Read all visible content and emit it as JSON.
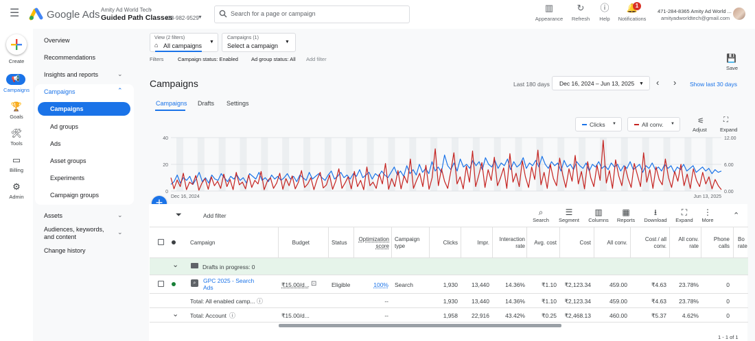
{
  "app": {
    "product_name": "Google Ads",
    "account_org": "Amity Ad World Tech",
    "account_name": "Guided Path Classes",
    "account_id": "428-982-9529",
    "search_placeholder": "Search for a page or campaign"
  },
  "topbar_buttons": [
    {
      "label": "Appearance",
      "icon": "appearance-icon"
    },
    {
      "label": "Refresh",
      "icon": "refresh-icon"
    },
    {
      "label": "Help",
      "icon": "help-icon"
    },
    {
      "label": "Notifications",
      "icon": "bell-icon",
      "badge": "1"
    }
  ],
  "user": {
    "line1": "471-284-8365 Amity Ad World ...",
    "email": "amityadworldtech@gmail.com"
  },
  "rail": [
    {
      "label": "Create"
    },
    {
      "label": "Campaigns"
    },
    {
      "label": "Goals"
    },
    {
      "label": "Tools"
    },
    {
      "label": "Billing"
    },
    {
      "label": "Admin"
    }
  ],
  "nav": {
    "overview": "Overview",
    "recommendations": "Recommendations",
    "insights": "Insights and reports",
    "campaigns": "Campaigns",
    "sub": [
      "Campaigns",
      "Ad groups",
      "Ads",
      "Asset groups",
      "Experiments",
      "Campaign groups"
    ],
    "assets": "Assets",
    "audiences": "Audiences, keywords, and content",
    "change_history": "Change history"
  },
  "filters": {
    "view_label": "View (2 filters)",
    "view_value": "All campaigns",
    "campaigns_label": "Campaigns (1)",
    "campaigns_value": "Select a campaign",
    "filters_label": "Filters",
    "f1": "Campaign status: Enabled",
    "f2": "Ad group status: All",
    "add_filter": "Add filter",
    "save": "Save"
  },
  "page": {
    "title": "Campaigns",
    "range_label": "Last 180 days",
    "date_range": "Dec 16, 2024 – Jun 13, 2025",
    "show_last": "Show last 30 days",
    "tabs": [
      "Campaigns",
      "Drafts",
      "Settings"
    ]
  },
  "chart_controls": {
    "series1": "Clicks",
    "series2": "All conv.",
    "adjust": "Adjust",
    "expand": "Expand"
  },
  "chart_data": {
    "type": "line",
    "x_start": "Dec 16, 2024",
    "x_end": "Jun 13, 2025",
    "left_ticks": [
      "0",
      "20",
      "40"
    ],
    "right_ticks": [
      "0.00",
      "6.00",
      "12.00"
    ],
    "left_range": [
      0,
      40
    ],
    "right_range": [
      0,
      12
    ],
    "series": [
      {
        "name": "Clicks",
        "color": "#1a73e8",
        "axis": "left",
        "values": [
          5,
          7,
          12,
          6,
          10,
          8,
          11,
          5,
          9,
          14,
          7,
          10,
          6,
          12,
          9,
          8,
          13,
          10,
          7,
          11,
          9,
          12,
          8,
          10,
          6,
          13,
          11,
          9,
          14,
          8,
          10,
          7,
          12,
          9,
          11,
          8,
          10,
          13,
          9,
          11,
          7,
          12,
          10,
          8,
          14,
          9,
          11,
          13,
          10,
          8,
          12,
          15,
          9,
          11,
          14,
          10,
          12,
          9,
          13,
          11,
          16,
          10,
          12,
          14,
          9,
          13,
          11,
          15,
          12,
          10,
          14,
          18,
          12,
          15,
          11,
          19,
          13,
          16,
          12,
          20,
          14,
          17,
          13,
          22,
          15,
          18,
          14,
          27,
          19,
          16,
          21,
          15,
          24,
          18,
          20,
          17,
          23,
          19,
          22,
          16,
          25,
          20,
          18,
          23,
          17,
          21,
          19,
          24,
          16,
          22,
          18,
          20,
          25,
          17,
          21,
          19,
          23,
          18,
          26,
          20,
          17,
          22,
          19,
          21,
          15,
          23,
          18,
          20,
          16,
          22,
          19,
          17,
          21,
          15,
          20,
          18,
          22,
          17,
          19,
          16,
          21,
          18,
          20,
          15,
          19,
          17,
          22,
          16,
          18,
          20,
          14,
          19,
          17,
          21,
          16,
          18,
          15,
          20,
          17,
          19,
          14,
          18,
          16,
          20,
          15,
          17,
          19,
          14,
          16,
          18,
          15,
          17,
          13,
          16,
          14,
          15
        ]
      },
      {
        "name": "All conv.",
        "color": "#c5221f",
        "axis": "right",
        "values": [
          3.0,
          0.5,
          2.5,
          1.0,
          4.0,
          0.3,
          2.0,
          1.5,
          3.5,
          0.2,
          1.8,
          2.8,
          0.4,
          3.2,
          1.2,
          2.2,
          0.6,
          3.8,
          1.0,
          2.6,
          0.3,
          4.2,
          1.4,
          2.0,
          0.5,
          3.6,
          0.8,
          2.4,
          1.6,
          4.4,
          0.3,
          2.2,
          3.0,
          0.6,
          1.8,
          4.0,
          0.4,
          2.8,
          1.2,
          3.4,
          0.5,
          2.0,
          4.6,
          0.8,
          1.6,
          3.0,
          0.3,
          2.6,
          4.2,
          0.7,
          1.4,
          3.6,
          0.4,
          2.2,
          5.0,
          0.6,
          1.8,
          3.2,
          0.5,
          4.4,
          1.0,
          2.4,
          0.3,
          5.4,
          1.2,
          2.0,
          0.6,
          3.8,
          1.6,
          6.2,
          0.4,
          2.8,
          1.0,
          4.6,
          0.5,
          3.4,
          1.8,
          7.2,
          0.6,
          2.4,
          4.0,
          1.0,
          5.8,
          0.4,
          3.0,
          9.5,
          1.2,
          5.0,
          2.2,
          0.6,
          4.4,
          8.6,
          1.6,
          3.2,
          0.5,
          5.6,
          2.0,
          9.0,
          1.0,
          3.6,
          6.4,
          0.8,
          4.8,
          2.4,
          7.6,
          1.2,
          3.0,
          5.2,
          0.6,
          8.4,
          2.0,
          4.0,
          1.0,
          6.8,
          3.2,
          0.8,
          5.4,
          2.6,
          9.2,
          1.4,
          4.2,
          0.6,
          6.0,
          2.8,
          1.2,
          7.4,
          3.6,
          0.8,
          5.0,
          2.2,
          8.0,
          1.6,
          4.4,
          0.5,
          6.6,
          3.0,
          1.0,
          5.8,
          2.4,
          11.4,
          1.8,
          4.6,
          0.6,
          7.0,
          3.4,
          1.2,
          5.6,
          2.8,
          0.8,
          6.2,
          3.6,
          1.0,
          8.6,
          2.0,
          4.8,
          0.6,
          5.4,
          2.6,
          1.4,
          7.2,
          3.0,
          0.8,
          4.4,
          2.2,
          6.0,
          1.2,
          3.8,
          0.6,
          5.0,
          2.4,
          1.0,
          4.2,
          1.6,
          3.2,
          0.5,
          2.6,
          1.2,
          0.3
        ]
      }
    ]
  },
  "toolbar": {
    "add_filter": "Add filter",
    "items": [
      {
        "label": "Search",
        "icon": "search-icon"
      },
      {
        "label": "Segment",
        "icon": "segment-icon"
      },
      {
        "label": "Columns",
        "icon": "columns-icon"
      },
      {
        "label": "Reports",
        "icon": "reports-icon"
      },
      {
        "label": "Download",
        "icon": "download-icon"
      },
      {
        "label": "Expand",
        "icon": "expand-icon"
      },
      {
        "label": "More",
        "icon": "more-icon"
      }
    ]
  },
  "table": {
    "headers": {
      "campaign": "Campaign",
      "budget": "Budget",
      "status": "Status",
      "opt_score": "Optimization score",
      "campaign_type": "Campaign type",
      "clicks": "Clicks",
      "impr": "Impr.",
      "interaction_rate": "Interaction rate",
      "avg_cost": "Avg. cost",
      "cost": "Cost",
      "all_conv": "All conv.",
      "cost_all_conv": "Cost / all conv.",
      "all_conv_rate": "All conv. rate",
      "phone_calls": "Phone calls",
      "bo_rate": "Bo rate"
    },
    "drafts_row": "Drafts in progress: 0",
    "campaign_row": {
      "name": "GPC 2025 - Search Ads",
      "budget": "₹15.00/d...",
      "status": "Eligible",
      "opt_score": "100%",
      "type": "Search",
      "clicks": "1,930",
      "impr": "13,440",
      "interaction_rate": "14.36%",
      "avg_cost": "₹1.10",
      "cost": "₹2,123.34",
      "all_conv": "459.00",
      "cost_all_conv": "₹4.63",
      "all_conv_rate": "23.78%",
      "phone_calls": "0"
    },
    "total_enabled_row": {
      "label": "Total: All enabled camp...",
      "opt_score": "--",
      "clicks": "1,930",
      "impr": "13,440",
      "interaction_rate": "14.36%",
      "avg_cost": "₹1.10",
      "cost": "₹2,123.34",
      "all_conv": "459.00",
      "cost_all_conv": "₹4.63",
      "all_conv_rate": "23.78%",
      "phone_calls": "0"
    },
    "total_account_row": {
      "label": "Total: Account",
      "budget": "₹15.00/d...",
      "opt_score": "--",
      "clicks": "1,958",
      "impr": "22,916",
      "interaction_rate": "43.42%",
      "avg_cost": "₹0.25",
      "cost": "₹2,468.13",
      "all_conv": "460.00",
      "cost_all_conv": "₹5.37",
      "all_conv_rate": "4.62%",
      "phone_calls": "0"
    },
    "pagination": "1 - 1 of 1"
  }
}
